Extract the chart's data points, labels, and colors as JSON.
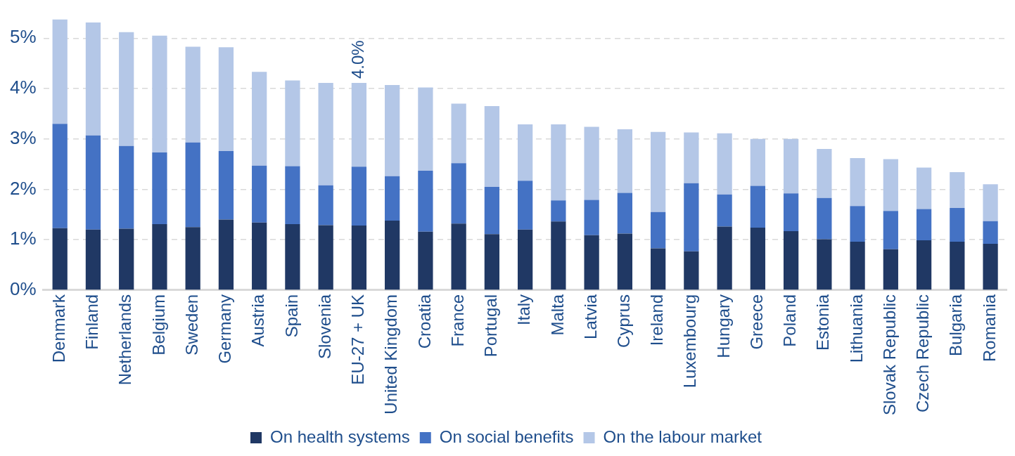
{
  "chart_data": {
    "type": "bar",
    "stacked": true,
    "categories": [
      "Denmark",
      "Finland",
      "Netherlands",
      "Belgium",
      "Sweden",
      "Germany",
      "Austria",
      "Spain",
      "Slovenia",
      "EU-27 + UK",
      "United Kingdom",
      "Croatia",
      "France",
      "Portugal",
      "Italy",
      "Malta",
      "Latvia",
      "Cyprus",
      "Ireland",
      "Luxembourg",
      "Hungary",
      "Greece",
      "Poland",
      "Estonia",
      "Lithuania",
      "Slovak Republic",
      "Czech Republic",
      "Bulgaria",
      "Romania"
    ],
    "series": [
      {
        "name": "On health systems",
        "color": "#203864",
        "values": [
          1.23,
          1.2,
          1.22,
          1.31,
          1.25,
          1.4,
          1.34,
          1.31,
          1.29,
          1.28,
          1.38,
          1.16,
          1.32,
          1.11,
          1.2,
          1.36,
          1.09,
          1.12,
          0.83,
          0.77,
          1.26,
          1.24,
          1.17,
          1.01,
          0.96,
          0.81,
          0.99,
          0.96,
          0.92
        ]
      },
      {
        "name": "On social benefits",
        "color": "#4472c4",
        "values": [
          2.07,
          1.87,
          1.64,
          1.42,
          1.68,
          1.36,
          1.13,
          1.15,
          0.79,
          1.17,
          0.88,
          1.21,
          1.2,
          0.94,
          0.97,
          0.42,
          0.7,
          0.81,
          0.72,
          1.35,
          0.64,
          0.83,
          0.75,
          0.82,
          0.71,
          0.76,
          0.62,
          0.67,
          0.45
        ]
      },
      {
        "name": "On the labour market",
        "color": "#b4c7e7",
        "values": [
          2.07,
          2.24,
          2.26,
          2.32,
          1.9,
          2.06,
          1.86,
          1.7,
          2.03,
          1.66,
          1.81,
          1.65,
          1.18,
          1.6,
          1.12,
          1.51,
          1.45,
          1.26,
          1.59,
          1.01,
          1.21,
          0.93,
          1.08,
          0.97,
          0.95,
          1.03,
          0.82,
          0.71,
          0.73
        ]
      }
    ],
    "totals": [
      null,
      null,
      null,
      null,
      null,
      null,
      null,
      null,
      null,
      "4.0%",
      null,
      null,
      null,
      null,
      null,
      null,
      null,
      null,
      null,
      null,
      null,
      null,
      null,
      null,
      null,
      null,
      null,
      null,
      null
    ],
    "ylim": [
      0,
      5.4
    ],
    "yticks": [
      {
        "value": 0,
        "label": "0%"
      },
      {
        "value": 1,
        "label": "1%"
      },
      {
        "value": 2,
        "label": "2%"
      },
      {
        "value": 3,
        "label": "3%"
      },
      {
        "value": 4,
        "label": "4%"
      },
      {
        "value": 5,
        "label": "5%"
      }
    ],
    "grid": "y",
    "legend": "bottom"
  }
}
